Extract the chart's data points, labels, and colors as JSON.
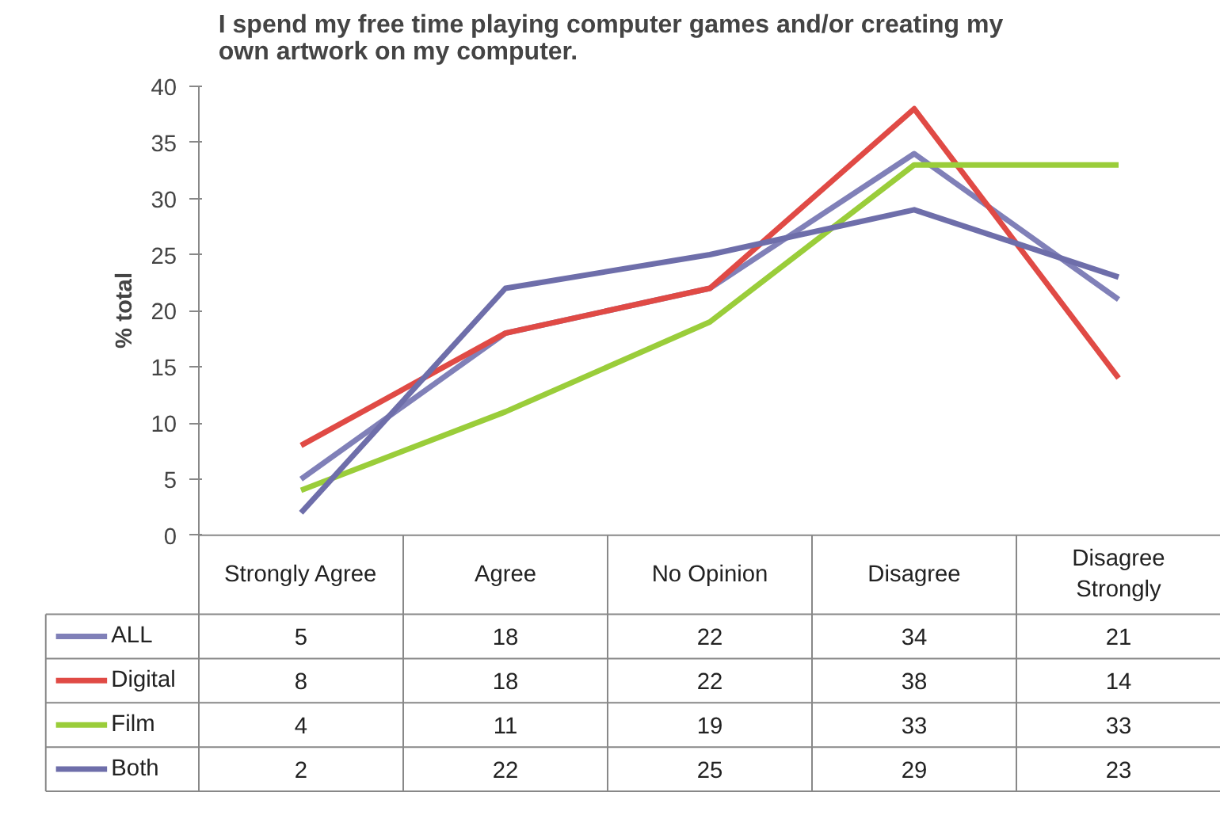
{
  "chart_data": {
    "type": "line",
    "title": "I spend my free time playing computer games and/or creating my own artwork on my computer.",
    "ylabel": "% total",
    "categories": [
      "Strongly Agree",
      "Agree",
      "No Opinion",
      "Disagree",
      "Disagree Strongly"
    ],
    "series": [
      {
        "name": "ALL",
        "color": "#8080b8",
        "values": [
          5,
          18,
          22,
          34,
          21
        ]
      },
      {
        "name": "Digital",
        "color": "#e04a45",
        "values": [
          8,
          18,
          22,
          38,
          14
        ]
      },
      {
        "name": "Film",
        "color": "#9acd3a",
        "values": [
          4,
          11,
          19,
          33,
          33
        ]
      },
      {
        "name": "Both",
        "color": "#6e6eaa",
        "values": [
          2,
          22,
          25,
          29,
          23
        ]
      }
    ],
    "ylim": [
      0,
      40
    ],
    "yticks": [
      0,
      5,
      10,
      15,
      20,
      25,
      30,
      35,
      40
    ],
    "grid": false,
    "legend": "bottom",
    "data_labels": true,
    "marker": "none"
  }
}
